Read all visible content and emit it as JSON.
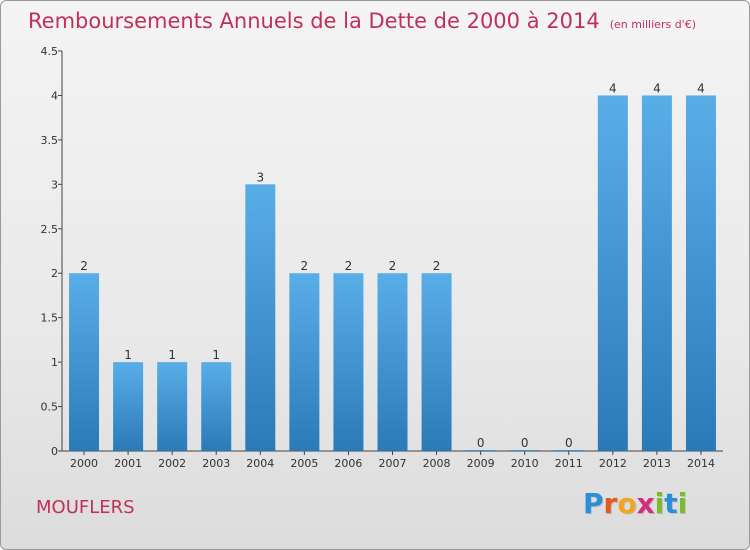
{
  "title": "Remboursements Annuels de la Dette de 2000 à 2014",
  "title_unit": "(en milliers d'€)",
  "commune": "MOUFLERS",
  "brand": {
    "letters": [
      "P",
      "r",
      "o",
      "x",
      "i",
      "t",
      "i"
    ],
    "colors": [
      "#2a8fd6",
      "#e35a1f",
      "#f2a51f",
      "#d62b7e",
      "#7dbb2a",
      "#2a8fd6",
      "#7dbb2a"
    ]
  },
  "colors": {
    "bar_light": "#5aaee8",
    "bar_dark": "#2a7ab8",
    "title": "#c0305a"
  },
  "chart_data": {
    "type": "bar",
    "categories": [
      "2000",
      "2001",
      "2002",
      "2003",
      "2004",
      "2005",
      "2006",
      "2007",
      "2008",
      "2009",
      "2010",
      "2011",
      "2012",
      "2013",
      "2014"
    ],
    "values": [
      2,
      1,
      1,
      1,
      3,
      2,
      2,
      2,
      2,
      0,
      0,
      0,
      4,
      4,
      4
    ],
    "value_labels": [
      "2",
      "1",
      "1",
      "1",
      "3",
      "2",
      "2",
      "2",
      "2",
      "0",
      "0",
      "0",
      "4",
      "4",
      "4"
    ],
    "y_ticks": [
      0,
      0.5,
      1,
      1.5,
      2,
      2.5,
      3,
      3.5,
      4,
      4.5
    ],
    "y_tick_labels": [
      "0",
      "0.5",
      "1",
      "1.5",
      "2",
      "2.5",
      "3",
      "3.5",
      "4",
      "4.5"
    ],
    "ylim": [
      0,
      4.5
    ],
    "grid": false
  }
}
